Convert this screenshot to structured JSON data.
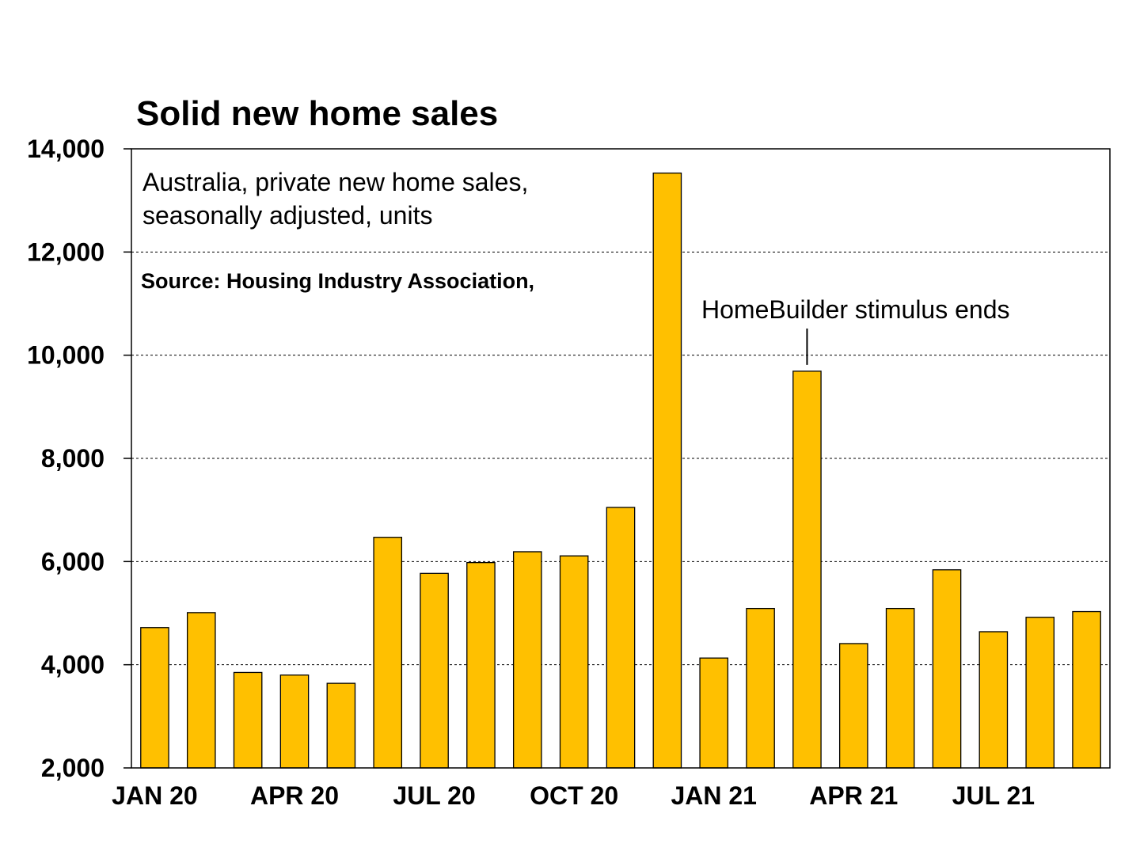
{
  "chart_data": {
    "type": "bar",
    "title": "Solid new home sales",
    "subtitle_lines": [
      "Australia, private new home sales,",
      "seasonally adjusted, units"
    ],
    "source": "Source: Housing Industry Association,",
    "annotation": {
      "text": "HomeBuilder stimulus ends",
      "target_index": 14
    },
    "categories": [
      "Jan 20",
      "Feb 20",
      "Mar 20",
      "Apr 20",
      "May 20",
      "Jun 20",
      "Jul 20",
      "Aug 20",
      "Sep 20",
      "Oct 20",
      "Nov 20",
      "Dec 20",
      "Jan 21",
      "Feb 21",
      "Mar 21",
      "Apr 21",
      "May 21",
      "Jun 21",
      "Jul 21",
      "Aug 21",
      "Sep 21"
    ],
    "values": [
      4720,
      5010,
      3850,
      3800,
      3640,
      6470,
      5770,
      5980,
      6190,
      6110,
      7050,
      13530,
      4130,
      5090,
      9690,
      4410,
      5090,
      5840,
      4640,
      4920,
      5030
    ],
    "x_tick_labels": [
      {
        "label": "JAN 20",
        "index": 0.5
      },
      {
        "label": "APR 20",
        "index": 3.5
      },
      {
        "label": "JUL 20",
        "index": 6.5
      },
      {
        "label": "OCT 20",
        "index": 9.5
      },
      {
        "label": "JAN 21",
        "index": 12.5
      },
      {
        "label": "APR 21",
        "index": 15.5
      },
      {
        "label": "JUL 21",
        "index": 18.5
      }
    ],
    "y_ticks": [
      {
        "value": 2000,
        "label": "2,000"
      },
      {
        "value": 4000,
        "label": "4,000"
      },
      {
        "value": 6000,
        "label": "6,000"
      },
      {
        "value": 8000,
        "label": "8,000"
      },
      {
        "value": 10000,
        "label": "10,000"
      },
      {
        "value": 12000,
        "label": "12,000"
      },
      {
        "value": 14000,
        "label": "14,000"
      }
    ],
    "ylim": [
      2000,
      14000
    ],
    "grid": true,
    "bar_color": "#FFC000"
  }
}
